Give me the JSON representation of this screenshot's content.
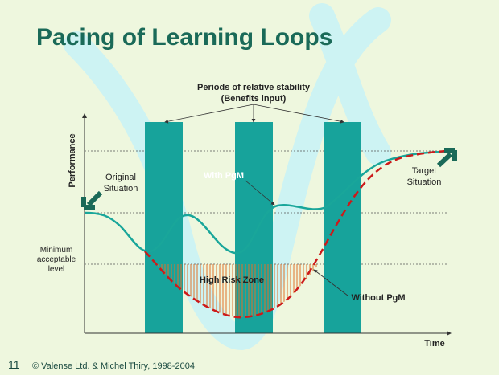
{
  "header": {
    "title": "Pacing of Learning Loops"
  },
  "axes": {
    "y_label": "Performance",
    "x_label": "Time"
  },
  "annotations": {
    "stability": [
      "Periods of relative stability",
      "(Benefits input)"
    ],
    "original_situation": [
      "Original",
      "Situation"
    ],
    "target_situation": [
      "Target",
      "Situation"
    ],
    "minimum_level": [
      "Minimum",
      "acceptable",
      "level"
    ],
    "with_pgm": "With PgM",
    "without_pgm": "Without PgM",
    "risk_zone": "High Risk Zone"
  },
  "footer": {
    "page_number": "11",
    "copyright": "© Valense Ltd. & Michel Thiry, 1998-2004"
  }
}
